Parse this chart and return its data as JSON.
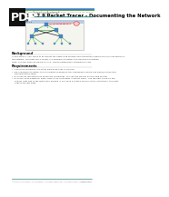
{
  "bg_color": "#ffffff",
  "pdf_label": "PDF",
  "pdf_bg": "#111111",
  "pdf_fg": "#ffffff",
  "cisco_text": "Cisco Networking Academy®",
  "right_header_text": "Packet Tracer - Documenting the Network",
  "title": "1.1.2.9 Packet Tracer - Documenting the Network",
  "subtitle": "Topology",
  "body_text_color": "#444444",
  "footer_text": "©2013 Cisco and/or its affiliates. All rights reserved. This document is Cisco Public.",
  "footer_right": "Page 1 of 3",
  "header_blue": "#3a7abf",
  "header_green": "#6aaa3a",
  "topo_bg": "#f5f5f0",
  "topo_border": "#bbbbbb",
  "topo_title_bg": "#b8cce4",
  "topo_title_text": "#333333",
  "green_line": "#44bb44",
  "red_line": "#dd2222",
  "pink_line": "#ff9999",
  "node_blue": "#4a86c8",
  "node_cyan": "#44aacc",
  "section_bold_color": "#000000",
  "bold_italic_color": "#cc4400"
}
